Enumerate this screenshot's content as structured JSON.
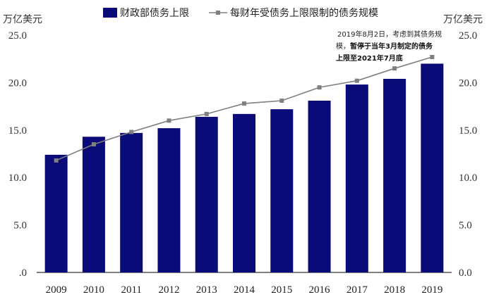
{
  "chart_data": {
    "type": "bar",
    "categories": [
      "2009",
      "2010",
      "2011",
      "2012",
      "2013",
      "2014",
      "2015",
      "2016",
      "2017",
      "2018",
      "2019"
    ],
    "series": [
      {
        "name": "财政部债务上限",
        "type": "bar",
        "axis": "left",
        "color": "#0a0a78",
        "values": [
          12.4,
          14.3,
          14.7,
          15.2,
          16.4,
          16.7,
          17.2,
          18.1,
          19.8,
          20.4,
          22.0
        ]
      },
      {
        "name": "每财年受债务上限限制的债务规模",
        "type": "line",
        "axis": "right",
        "color": "#7f7f7f",
        "values": [
          11.8,
          13.5,
          14.8,
          16.0,
          16.7,
          17.8,
          18.1,
          19.5,
          20.2,
          21.5,
          22.7
        ]
      }
    ],
    "yunit_left": "万亿美元",
    "yunit_right": "万亿美元",
    "ylim": [
      0,
      25
    ],
    "yticks_left": [
      ".0",
      "5.0",
      "10.0",
      "15.0",
      "20.0",
      "25.0"
    ],
    "yticks_right": [
      "0.0",
      "5.0",
      "10.0",
      "15.0",
      "20.0",
      "25.0"
    ],
    "ytick_values": [
      0,
      5,
      10,
      15,
      20,
      25
    ],
    "legend_position": "top",
    "grid": false,
    "annotation": {
      "line1": "2019年8月2日，考虑到其债务规",
      "line2_normal": "模，",
      "line2_bold": "暂停于当年3月制定的债务",
      "line3_bold": "上限至2021年7月底"
    }
  }
}
